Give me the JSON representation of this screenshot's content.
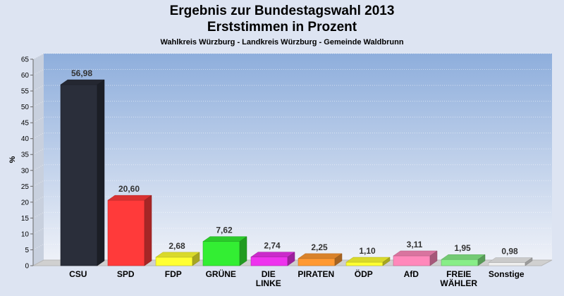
{
  "chart_data": {
    "type": "bar",
    "title_line1": "Ergebnis zur Bundestagswahl 2013",
    "title_line2": "Erststimmen in Prozent",
    "subtitle": "Wahlkreis Würzburg - Landkreis Würzburg - Gemeinde Waldbrunn",
    "ylabel": "%",
    "ylim": [
      0,
      65
    ],
    "yticks": [
      "0",
      "5",
      "10",
      "15",
      "20",
      "25",
      "30",
      "35",
      "40",
      "45",
      "50",
      "55",
      "60",
      "65"
    ],
    "grid": true,
    "categories": [
      [
        "CSU"
      ],
      [
        "SPD"
      ],
      [
        "FDP"
      ],
      [
        "GRÜNE"
      ],
      [
        "DIE",
        "LINKE"
      ],
      [
        "PIRATEN"
      ],
      [
        "ÖDP"
      ],
      [
        "AfD"
      ],
      [
        "FREIE",
        "WÄHLER"
      ],
      [
        "Sonstige"
      ]
    ],
    "values": [
      56.98,
      20.6,
      2.68,
      7.62,
      2.74,
      2.25,
      1.1,
      3.11,
      1.95,
      0.98
    ],
    "value_labels": [
      "56,98",
      "20,60",
      "2,68",
      "7,62",
      "2,74",
      "2,25",
      "1,10",
      "3,11",
      "1,95",
      "0,98"
    ],
    "colors": [
      "#2a2e3a",
      "#ff3a3a",
      "#ffff33",
      "#33ee33",
      "#ee33ee",
      "#ff9933",
      "#ffff33",
      "#ff88bb",
      "#88ee88",
      "#eeeeee"
    ]
  }
}
